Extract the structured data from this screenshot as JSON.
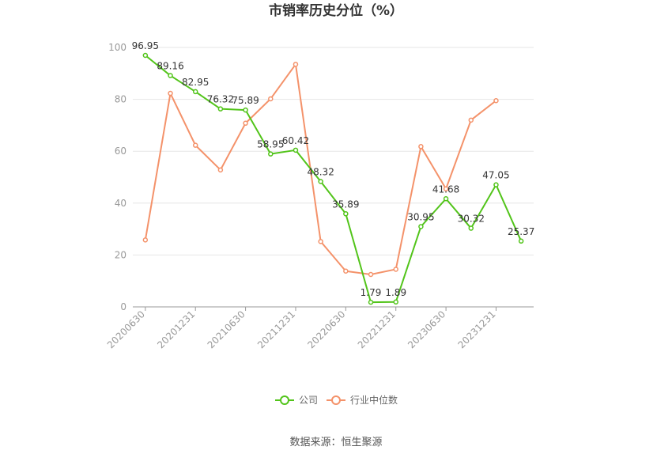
{
  "chart_data": {
    "type": "line",
    "title": "市销率历史分位（%）",
    "xlabel": "",
    "ylabel": "",
    "ylim": [
      0,
      100
    ],
    "yticks": [
      0,
      20,
      40,
      60,
      80,
      100
    ],
    "x": [
      "20200630",
      "20200930",
      "20201231",
      "20210331",
      "20210630",
      "20210930",
      "20211231",
      "20220331",
      "20220630",
      "20220930",
      "20221231",
      "20230331",
      "20230630",
      "20230930",
      "20231231",
      "20240331"
    ],
    "xtick_labels": [
      "20200630",
      "20201231",
      "20210630",
      "20211231",
      "20220630",
      "20221231",
      "20230630",
      "20231231"
    ],
    "series": [
      {
        "name": "公司",
        "color": "#52c41a",
        "values": [
          96.95,
          89.16,
          82.95,
          76.32,
          75.89,
          58.95,
          60.42,
          48.32,
          35.89,
          1.79,
          1.89,
          30.95,
          41.68,
          30.32,
          47.05,
          25.37
        ],
        "labels": [
          "96.95",
          "89.16",
          "82.95",
          "76.32",
          "75.89",
          "58.95",
          "60.42",
          "48.32",
          "35.89",
          "1.79",
          "1.89",
          "30.95",
          "41.68",
          "30.32",
          "47.05",
          "25.37"
        ]
      },
      {
        "name": "行业中位数",
        "color": "#f4926a",
        "values": [
          25.8,
          82.3,
          62.3,
          52.8,
          70.8,
          80.2,
          93.5,
          25.2,
          13.8,
          12.5,
          14.5,
          61.8,
          45.5,
          72.0,
          79.5,
          null
        ]
      }
    ],
    "grid": true,
    "legend": "bottom-center"
  },
  "source_text": "数据来源：恒生聚源"
}
